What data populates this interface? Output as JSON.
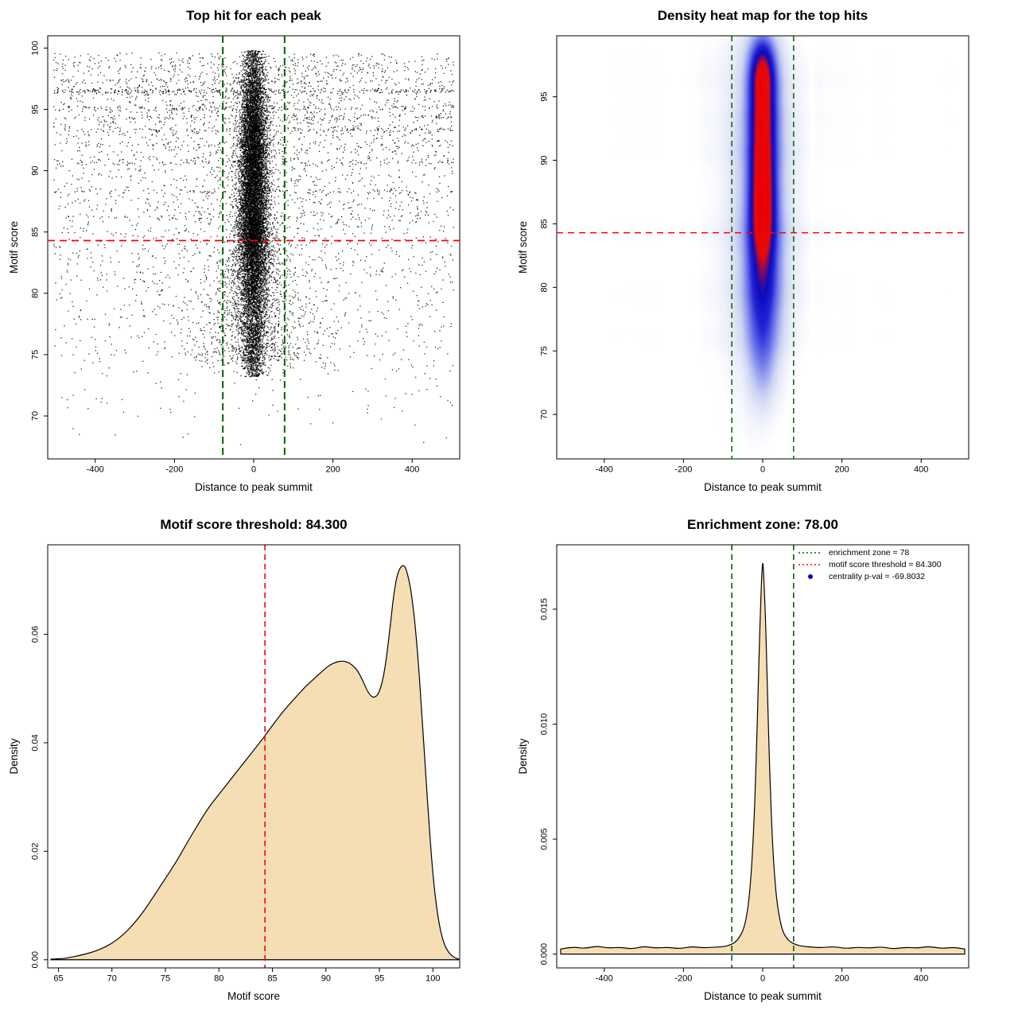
{
  "figure": {
    "background": "#ffffff"
  },
  "colors": {
    "points": "#000000",
    "threshold_line": "#ff0000",
    "zone_line": "#006400",
    "density_fill": "#f5deb3",
    "density_stroke": "#000000",
    "legend_point": "#0000cc",
    "heat_stops": [
      [
        0,
        255,
        255,
        255
      ],
      [
        0.03,
        255,
        255,
        255
      ],
      [
        0.13,
        205,
        212,
        243
      ],
      [
        0.25,
        120,
        130,
        235
      ],
      [
        0.4,
        35,
        35,
        215
      ],
      [
        0.52,
        10,
        10,
        190
      ],
      [
        0.7,
        230,
        10,
        10
      ],
      [
        1,
        235,
        0,
        0
      ]
    ]
  },
  "chart_data": [
    {
      "type": "scatter",
      "title": "Top hit for each peak",
      "xlabel": "Distance to peak summit",
      "ylabel": "Motif score",
      "xlim": [
        -520,
        520
      ],
      "ylim": [
        66.5,
        101
      ],
      "xticks": [
        -400,
        -200,
        0,
        200,
        400
      ],
      "xtick_labels": [
        "-400",
        "-200",
        "0",
        "200",
        "400"
      ],
      "yticks": [
        70,
        75,
        80,
        85,
        90,
        95,
        100
      ],
      "ytick_labels": [
        "70",
        "75",
        "80",
        "85",
        "90",
        "95",
        "100"
      ],
      "threshold_hline": 84.3,
      "enrichment_vlines": [
        -78,
        78
      ],
      "point_cloud": {
        "seed": 20240613,
        "cluster": {
          "n": 12000,
          "y_mean": 88.5,
          "y_sd": 6.6,
          "y_min": 73.2,
          "y_max": 99.8,
          "width_center": 87,
          "width_peak": 30,
          "width_falloff": 0.055,
          "width_min": 9
        },
        "fan": {
          "n": 1600,
          "y_min": 74.5,
          "y_max": 86,
          "spread_base": 35,
          "spread_grow": 8
        },
        "tail": {
          "n": 500,
          "y_min": 73.2,
          "y_max": 77.5,
          "spread": 16
        },
        "background": {
          "n": 2600,
          "y_pow": 0.5,
          "y_min": 67,
          "y_range": 32.6
        },
        "mid_haze": {
          "n": 900,
          "x_sd": 150,
          "y_min": 74,
          "y_max": 99
        },
        "bands": [
          {
            "y": 96.5,
            "n": 280
          },
          {
            "y": 95.1,
            "n": 130
          },
          {
            "y": 94.35,
            "n": 90
          },
          {
            "y": 93.3,
            "n": 110
          },
          {
            "y": 92.1,
            "n": 60
          },
          {
            "y": 90.7,
            "n": 110
          },
          {
            "y": 88.3,
            "n": 80
          },
          {
            "y": 86.2,
            "n": 50
          },
          {
            "y": 97.3,
            "n": 70
          },
          {
            "y": 98.3,
            "n": 40
          }
        ]
      }
    },
    {
      "type": "heatmap",
      "title": "Density heat map for the top hits",
      "xlabel": "Distance to peak summit",
      "ylabel": "Motif score",
      "xlim": [
        -520,
        520
      ],
      "ylim": [
        66.5,
        99.8
      ],
      "xticks": [
        -400,
        -200,
        0,
        200,
        400
      ],
      "xtick_labels": [
        "-400",
        "-200",
        "0",
        "200",
        "400"
      ],
      "yticks": [
        70,
        75,
        80,
        85,
        90,
        95
      ],
      "ytick_labels": [
        "70",
        "75",
        "80",
        "85",
        "90",
        "95"
      ],
      "threshold_hline": 84.3,
      "enrichment_vlines": [
        -78,
        78
      ],
      "seed": 7,
      "col_noise": 0.05,
      "blobs": [
        {
          "a": 1.0,
          "x": 0,
          "y": 95.5,
          "sx": 22,
          "sy": 2.2
        },
        {
          "a": 1.0,
          "x": 0,
          "y": 92.5,
          "sx": 21,
          "sy": 2.6
        },
        {
          "a": 0.98,
          "x": 0,
          "y": 89.5,
          "sx": 20,
          "sy": 2.6
        },
        {
          "a": 0.9,
          "x": 0,
          "y": 87,
          "sx": 20,
          "sy": 2.4
        },
        {
          "a": 0.78,
          "x": 0,
          "y": 85,
          "sx": 21,
          "sy": 2.2
        },
        {
          "a": 0.9,
          "x": 0,
          "y": 97.3,
          "sx": 20,
          "sy": 1.6
        },
        {
          "a": 0.55,
          "x": 0,
          "y": 83,
          "sx": 24,
          "sy": 2.6
        },
        {
          "a": 0.45,
          "x": 0,
          "y": 80.5,
          "sx": 26,
          "sy": 2.6
        },
        {
          "a": 0.34,
          "x": 0,
          "y": 78,
          "sx": 26,
          "sy": 2.6
        },
        {
          "a": 0.26,
          "x": 0,
          "y": 75.5,
          "sx": 24,
          "sy": 2.4
        },
        {
          "a": 0.16,
          "x": 0,
          "y": 73,
          "sx": 22,
          "sy": 2.2
        },
        {
          "a": 0.3,
          "x": 0,
          "y": 93,
          "sx": 45,
          "sy": 6
        },
        {
          "a": 0.26,
          "x": 0,
          "y": 86,
          "sx": 48,
          "sy": 7
        },
        {
          "a": 0.2,
          "x": 0,
          "y": 79,
          "sx": 55,
          "sy": 6
        },
        {
          "a": 0.12,
          "x": 0,
          "y": 88,
          "sx": 95,
          "sy": 12
        },
        {
          "a": 0.055,
          "x": 0,
          "y": 96.3,
          "sx": 480,
          "sy": 1.1
        },
        {
          "a": 0.045,
          "x": 0,
          "y": 93.2,
          "sx": 480,
          "sy": 0.9
        },
        {
          "a": 0.04,
          "x": 0,
          "y": 90.7,
          "sx": 480,
          "sy": 0.8
        },
        {
          "a": 0.045,
          "x": 0,
          "y": 84.3,
          "sx": 480,
          "sy": 1.0
        },
        {
          "a": 0.04,
          "x": 0,
          "y": 79.5,
          "sx": 480,
          "sy": 1.2
        },
        {
          "a": 0.035,
          "x": 0,
          "y": 76,
          "sx": 480,
          "sy": 1.0
        },
        {
          "a": 0.03,
          "x": 0,
          "y": 98.5,
          "sx": 480,
          "sy": 0.8
        }
      ]
    },
    {
      "type": "area",
      "title": "Motif score threshold: 84.300",
      "xlabel": "Motif score",
      "ylabel": "Density",
      "xlim": [
        64,
        102.5
      ],
      "ylim": [
        -0.0015,
        0.0765
      ],
      "xticks": [
        65,
        70,
        75,
        80,
        85,
        90,
        95,
        100
      ],
      "xtick_labels": [
        "65",
        "70",
        "75",
        "80",
        "85",
        "90",
        "95",
        "100"
      ],
      "yticks": [
        0,
        0.02,
        0.04,
        0.06
      ],
      "ytick_labels": [
        "0.00",
        "0.02",
        "0.04",
        "0.06"
      ],
      "threshold_vline": 84.3,
      "curve": {
        "x": [
          64.3,
          65.5,
          66,
          67,
          68,
          69,
          70,
          71,
          72,
          73,
          74,
          75,
          76,
          77,
          78,
          79,
          80,
          81,
          82,
          83,
          84,
          84.3,
          85,
          86,
          87,
          88,
          89,
          90,
          90.5,
          91,
          91.5,
          92,
          92.5,
          93,
          93.5,
          94,
          94.5,
          95,
          95.5,
          96,
          96.3,
          96.6,
          96.9,
          97.2,
          97.5,
          98,
          98.5,
          99,
          99.5,
          100,
          100.5,
          101,
          101.5,
          102,
          102.4
        ],
        "y": [
          0.00012,
          0.0002,
          0.0004,
          0.0008,
          0.0013,
          0.002,
          0.003,
          0.0045,
          0.0065,
          0.009,
          0.012,
          0.015,
          0.018,
          0.0215,
          0.0248,
          0.028,
          0.0305,
          0.033,
          0.0355,
          0.038,
          0.0405,
          0.0413,
          0.0432,
          0.0458,
          0.048,
          0.0502,
          0.052,
          0.0538,
          0.0545,
          0.0549,
          0.0551,
          0.0549,
          0.0543,
          0.0532,
          0.0512,
          0.049,
          0.0482,
          0.0492,
          0.0532,
          0.0613,
          0.0668,
          0.0705,
          0.0722,
          0.0728,
          0.0722,
          0.0678,
          0.0586,
          0.0445,
          0.0288,
          0.0152,
          0.0072,
          0.003,
          0.0012,
          0.0004,
          0.00012
        ]
      }
    },
    {
      "type": "area",
      "title": "Enrichment zone: 78.00",
      "xlabel": "Distance to peak summit",
      "ylabel": "Density",
      "xlim": [
        -520,
        520
      ],
      "ylim": [
        -0.0006,
        0.0178
      ],
      "xticks": [
        -400,
        -200,
        0,
        200,
        400
      ],
      "xtick_labels": [
        "-400",
        "-200",
        "0",
        "200",
        "400"
      ],
      "yticks": [
        0,
        0.005,
        0.01,
        0.015
      ],
      "ytick_labels": [
        "0.000",
        "0.005",
        "0.010",
        "0.015"
      ],
      "enrichment_vlines": [
        -78,
        78
      ],
      "curve": {
        "x": [
          -510,
          -480,
          -450,
          -420,
          -390,
          -360,
          -330,
          -300,
          -270,
          -240,
          -210,
          -180,
          -150,
          -125,
          -100,
          -85,
          -70,
          -60,
          -50,
          -42,
          -35,
          -29,
          -24,
          -20,
          -16,
          -13,
          -10,
          -7,
          -4,
          -2,
          0,
          2,
          4,
          7,
          10,
          13,
          16,
          20,
          24,
          29,
          35,
          42,
          50,
          60,
          70,
          85,
          100,
          125,
          150,
          180,
          210,
          240,
          270,
          300,
          330,
          360,
          390,
          420,
          450,
          480,
          510
        ],
        "y": [
          0.00022,
          0.00032,
          0.00024,
          0.00035,
          0.00026,
          0.0003,
          0.00022,
          0.00034,
          0.00026,
          0.0003,
          0.00023,
          0.00033,
          0.00027,
          0.0003,
          0.00032,
          0.00038,
          0.0005,
          0.0007,
          0.001,
          0.0015,
          0.0023,
          0.0035,
          0.005,
          0.0066,
          0.0087,
          0.0105,
          0.0125,
          0.0143,
          0.0158,
          0.0166,
          0.0171,
          0.0167,
          0.0159,
          0.0146,
          0.0128,
          0.0108,
          0.0089,
          0.0068,
          0.0051,
          0.0036,
          0.0024,
          0.0016,
          0.001,
          0.0007,
          0.00052,
          0.0004,
          0.00034,
          0.0003,
          0.00028,
          0.00033,
          0.00024,
          0.0003,
          0.00026,
          0.00032,
          0.00022,
          0.0003,
          0.00026,
          0.00034,
          0.00024,
          0.0003,
          0.00022
        ]
      },
      "legend": {
        "items": [
          {
            "marker": "line",
            "color": "#006400",
            "label": "enrichment zone = 78"
          },
          {
            "marker": "line",
            "color": "#ff0000",
            "label": "motif score threshold = 84.300"
          },
          {
            "marker": "point",
            "color": "#0000cc",
            "label": "centrality p-val = -69.8032"
          }
        ]
      }
    }
  ]
}
